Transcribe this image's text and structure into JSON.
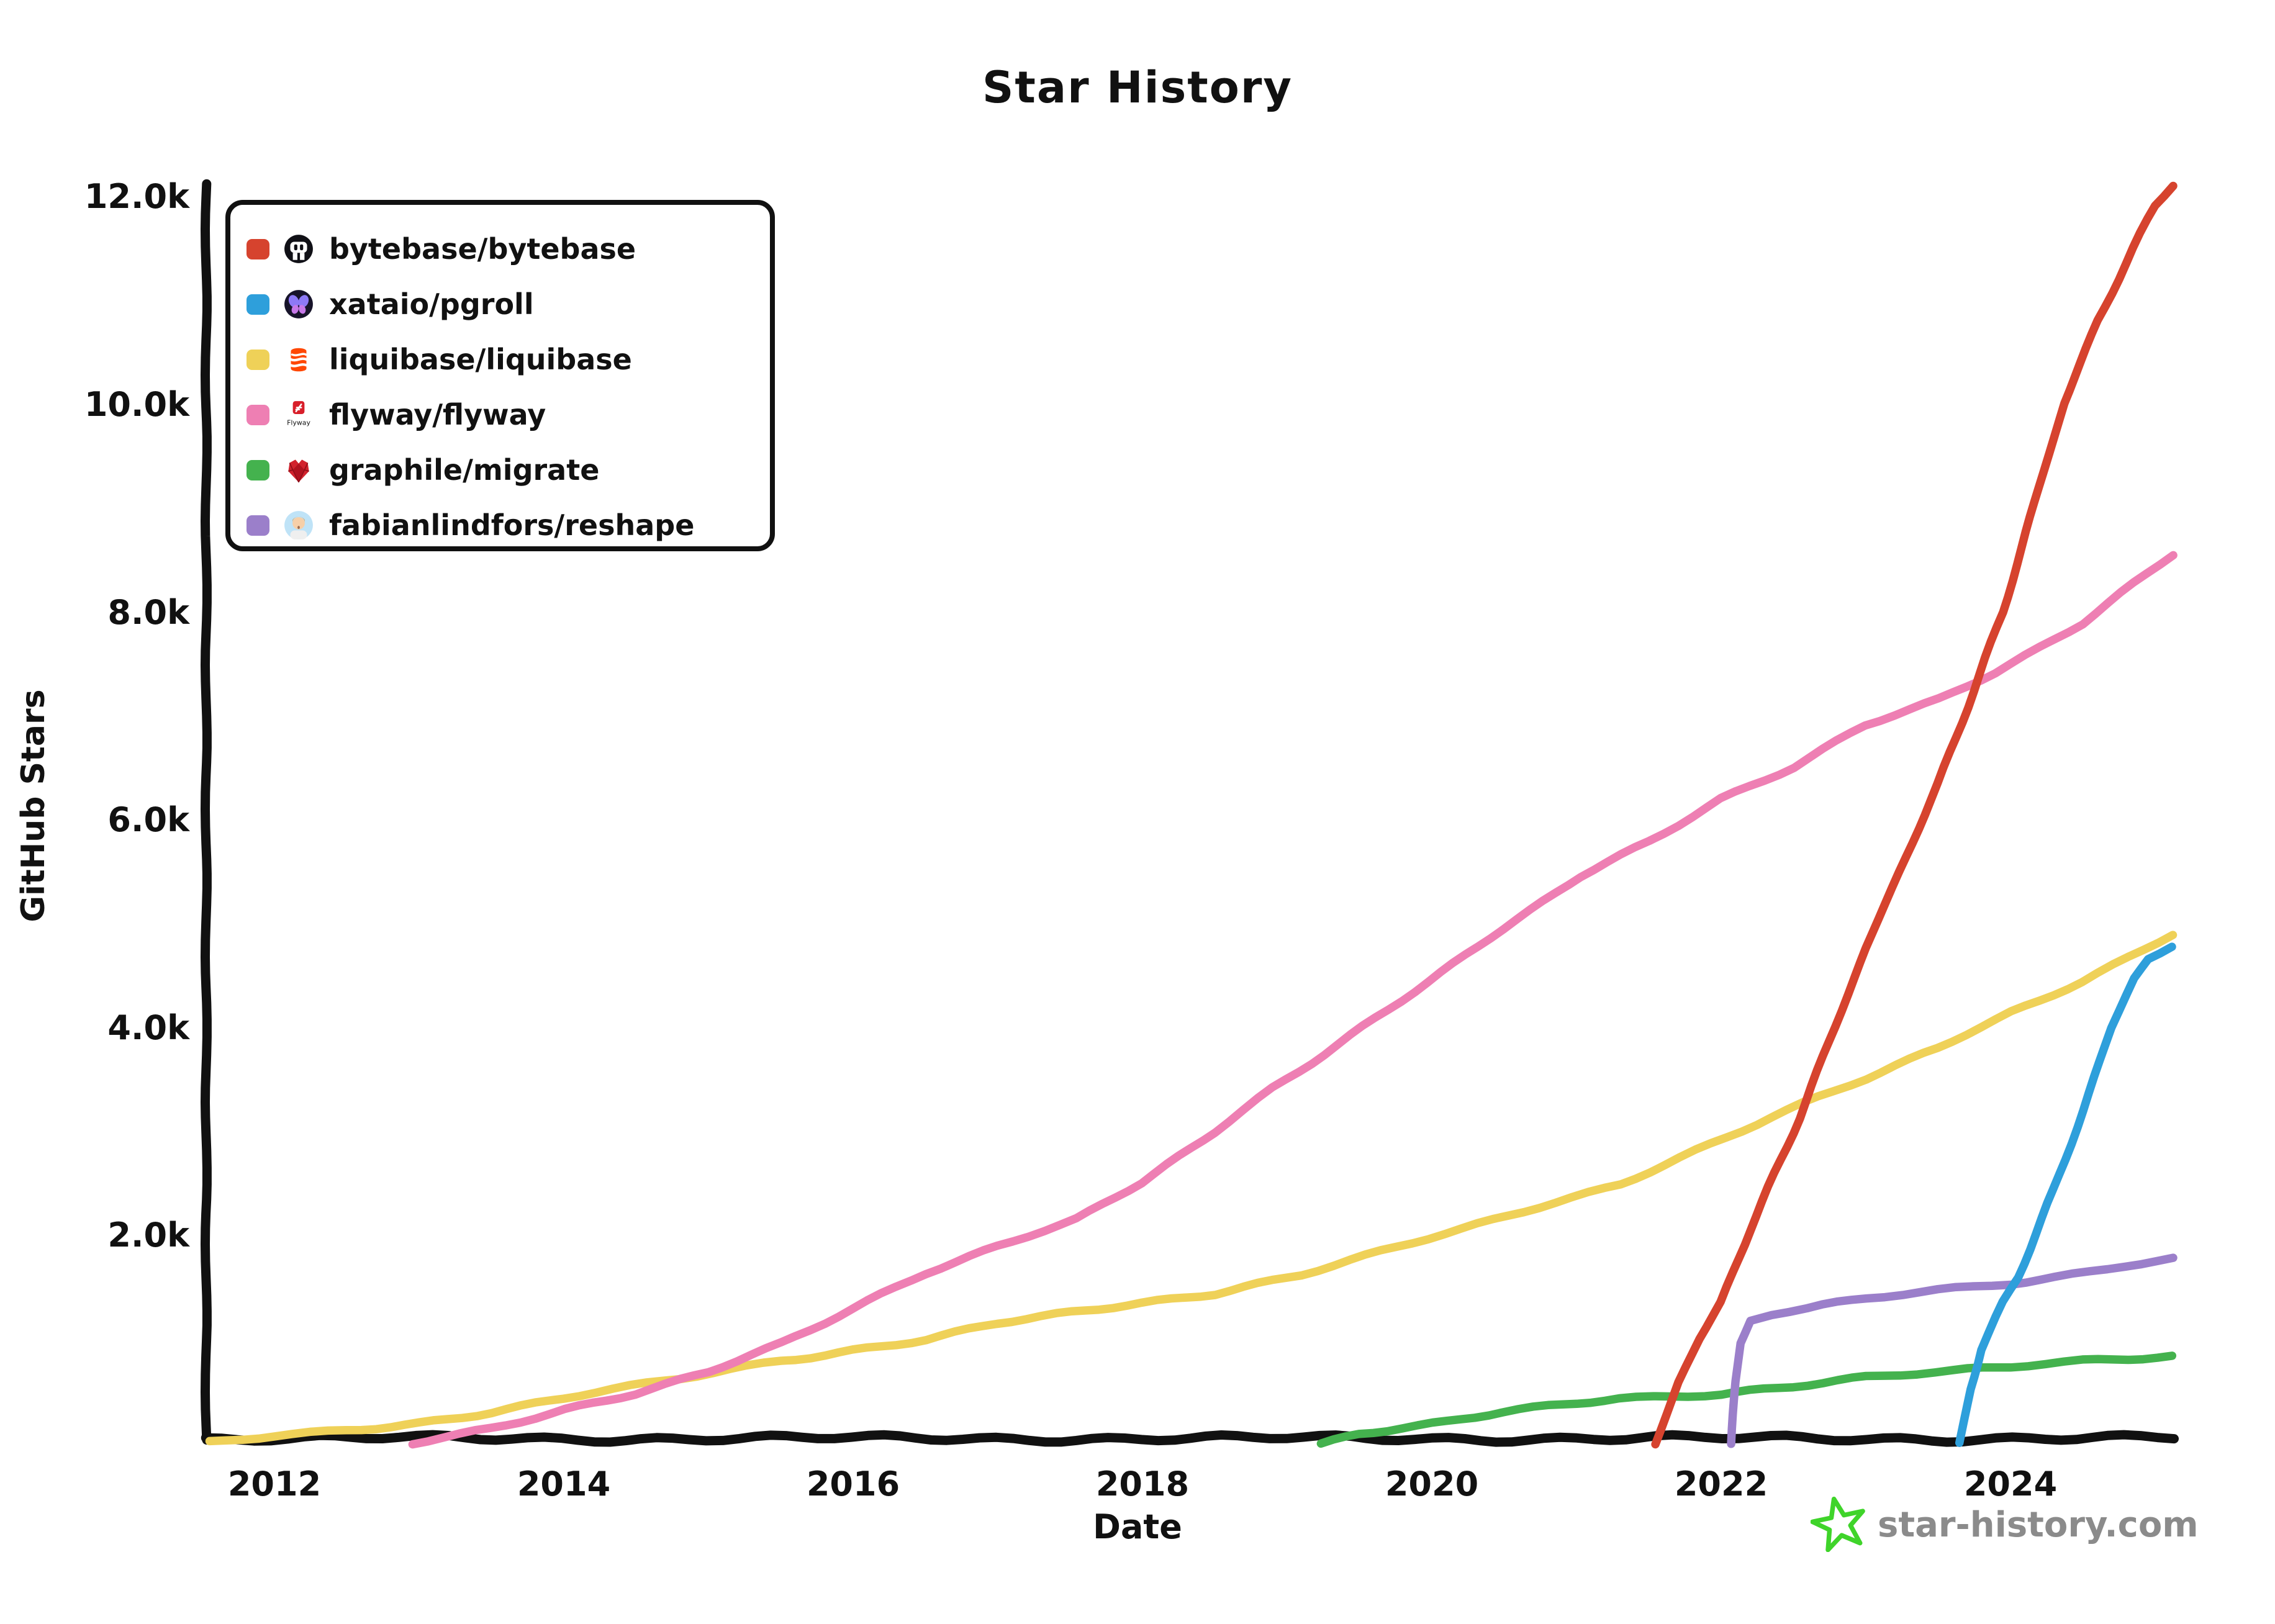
{
  "title": "Star History",
  "x_axis_label": "Date",
  "y_axis_label": "GitHub Stars",
  "footer": {
    "site": "star-history.com",
    "star_icon_color": "#3fd42a",
    "text_color": "#8b8b8b"
  },
  "legend": {
    "position": "top-left",
    "items": [
      {
        "label": "bytebase/bytebase",
        "icon": "bytebase-avatar-icon"
      },
      {
        "label": "xataio/pgroll",
        "icon": "xata-butterfly-icon"
      },
      {
        "label": "liquibase/liquibase",
        "icon": "liquibase-logo-icon"
      },
      {
        "label": "flyway/flyway",
        "icon": "flyway-logo-icon"
      },
      {
        "label": "graphile/migrate",
        "icon": "gem-heart-icon"
      },
      {
        "label": "fabianlindfors/reshape",
        "icon": "person-avatar-icon"
      }
    ]
  },
  "chart_data": {
    "type": "line",
    "title": "Star History",
    "xlabel": "Date",
    "ylabel": "GitHub Stars",
    "grid": false,
    "legend_position": "top-left",
    "xlim": [
      2011.5,
      2025.3
    ],
    "ylim": [
      0,
      12400
    ],
    "x_ticks": [
      {
        "label": "2012",
        "year": 2012
      },
      {
        "label": "2014",
        "year": 2014
      },
      {
        "label": "2016",
        "year": 2016
      },
      {
        "label": "2018",
        "year": 2018
      },
      {
        "label": "2020",
        "year": 2020
      },
      {
        "label": "2022",
        "year": 2022
      },
      {
        "label": "2024",
        "year": 2024
      }
    ],
    "y_ticks": [
      {
        "label": "2.0k",
        "stars": 2000
      },
      {
        "label": "4.0k",
        "stars": 4000
      },
      {
        "label": "6.0k",
        "stars": 6000
      },
      {
        "label": "8.0k",
        "stars": 8000
      },
      {
        "label": "10.0k",
        "stars": 10000
      },
      {
        "label": "12.0k",
        "stars": 12000
      }
    ],
    "series": [
      {
        "name": "bytebase/bytebase",
        "color": "#d6432e",
        "points": [
          [
            2021.55,
            0
          ],
          [
            2021.7,
            570
          ],
          [
            2021.85,
            1000
          ],
          [
            2022.0,
            1350
          ],
          [
            2022.2,
            2060
          ],
          [
            2022.54,
            3140
          ],
          [
            2023.0,
            4750
          ],
          [
            2023.5,
            6350
          ],
          [
            2023.95,
            8000
          ],
          [
            2024.2,
            9200
          ],
          [
            2024.37,
            10000
          ],
          [
            2024.6,
            10800
          ],
          [
            2024.85,
            11500
          ],
          [
            2025.0,
            11900
          ],
          [
            2025.12,
            12100
          ]
        ]
      },
      {
        "name": "xataio/pgroll",
        "color": "#2e9fdb",
        "points": [
          [
            2023.65,
            0
          ],
          [
            2023.72,
            500
          ],
          [
            2023.8,
            900
          ],
          [
            2023.95,
            1350
          ],
          [
            2024.05,
            1600
          ],
          [
            2024.3,
            2450
          ],
          [
            2024.5,
            3200
          ],
          [
            2024.7,
            4000
          ],
          [
            2024.85,
            4450
          ],
          [
            2024.95,
            4650
          ],
          [
            2025.12,
            4780
          ]
        ]
      },
      {
        "name": "liquibase/liquibase",
        "color": "#efd158",
        "points": [
          [
            2011.55,
            0
          ],
          [
            2012,
            70
          ],
          [
            2012.5,
            130
          ],
          [
            2013,
            200
          ],
          [
            2013.5,
            300
          ],
          [
            2014,
            430
          ],
          [
            2014.8,
            620
          ],
          [
            2015.5,
            800
          ],
          [
            2016,
            900
          ],
          [
            2016.5,
            1000
          ],
          [
            2017,
            1150
          ],
          [
            2017.5,
            1250
          ],
          [
            2018,
            1350
          ],
          [
            2018.5,
            1450
          ],
          [
            2019.1,
            1630
          ],
          [
            2020.2,
            2050
          ],
          [
            2021.3,
            2500
          ],
          [
            2022.35,
            3140
          ],
          [
            2023,
            3500
          ],
          [
            2023.5,
            3800
          ],
          [
            2024,
            4150
          ],
          [
            2024.5,
            4450
          ],
          [
            2025.12,
            4900
          ]
        ]
      },
      {
        "name": "flyway/flyway",
        "color": "#ee7fb3",
        "points": [
          [
            2012.95,
            0
          ],
          [
            2013.5,
            150
          ],
          [
            2014,
            330
          ],
          [
            2014.5,
            480
          ],
          [
            2015,
            680
          ],
          [
            2015.5,
            950
          ],
          [
            2016,
            1300
          ],
          [
            2016.5,
            1650
          ],
          [
            2017,
            1900
          ],
          [
            2017.54,
            2150
          ],
          [
            2018,
            2500
          ],
          [
            2018.5,
            3000
          ],
          [
            2018.9,
            3420
          ],
          [
            2019.97,
            4430
          ],
          [
            2021.03,
            5460
          ],
          [
            2021.5,
            5800
          ],
          [
            2022,
            6200
          ],
          [
            2022.5,
            6500
          ],
          [
            2023,
            6900
          ],
          [
            2023.5,
            7150
          ],
          [
            2023.9,
            7420
          ],
          [
            2024.5,
            7900
          ],
          [
            2025.12,
            8550
          ]
        ]
      },
      {
        "name": "graphile/migrate",
        "color": "#44b24e",
        "points": [
          [
            2019.23,
            0
          ],
          [
            2019.5,
            100
          ],
          [
            2019.8,
            160
          ],
          [
            2020.1,
            210
          ],
          [
            2020.5,
            300
          ],
          [
            2021.0,
            380
          ],
          [
            2021.3,
            420
          ],
          [
            2022.0,
            480
          ],
          [
            2022.5,
            560
          ],
          [
            2023.0,
            640
          ],
          [
            2023.6,
            690
          ],
          [
            2024.0,
            730
          ],
          [
            2024.5,
            790
          ],
          [
            2025.12,
            845
          ]
        ]
      },
      {
        "name": "fabianlindfors/reshape",
        "color": "#9b7fca",
        "points": [
          [
            2022.07,
            0
          ],
          [
            2022.1,
            600
          ],
          [
            2022.13,
            950
          ],
          [
            2022.2,
            1180
          ],
          [
            2022.35,
            1240
          ],
          [
            2022.6,
            1290
          ],
          [
            2023.0,
            1390
          ],
          [
            2023.38,
            1450
          ],
          [
            2023.62,
            1490
          ],
          [
            2024.0,
            1545
          ],
          [
            2024.3,
            1600
          ],
          [
            2024.55,
            1660
          ],
          [
            2024.8,
            1720
          ],
          [
            2025.12,
            1775
          ]
        ]
      }
    ]
  }
}
